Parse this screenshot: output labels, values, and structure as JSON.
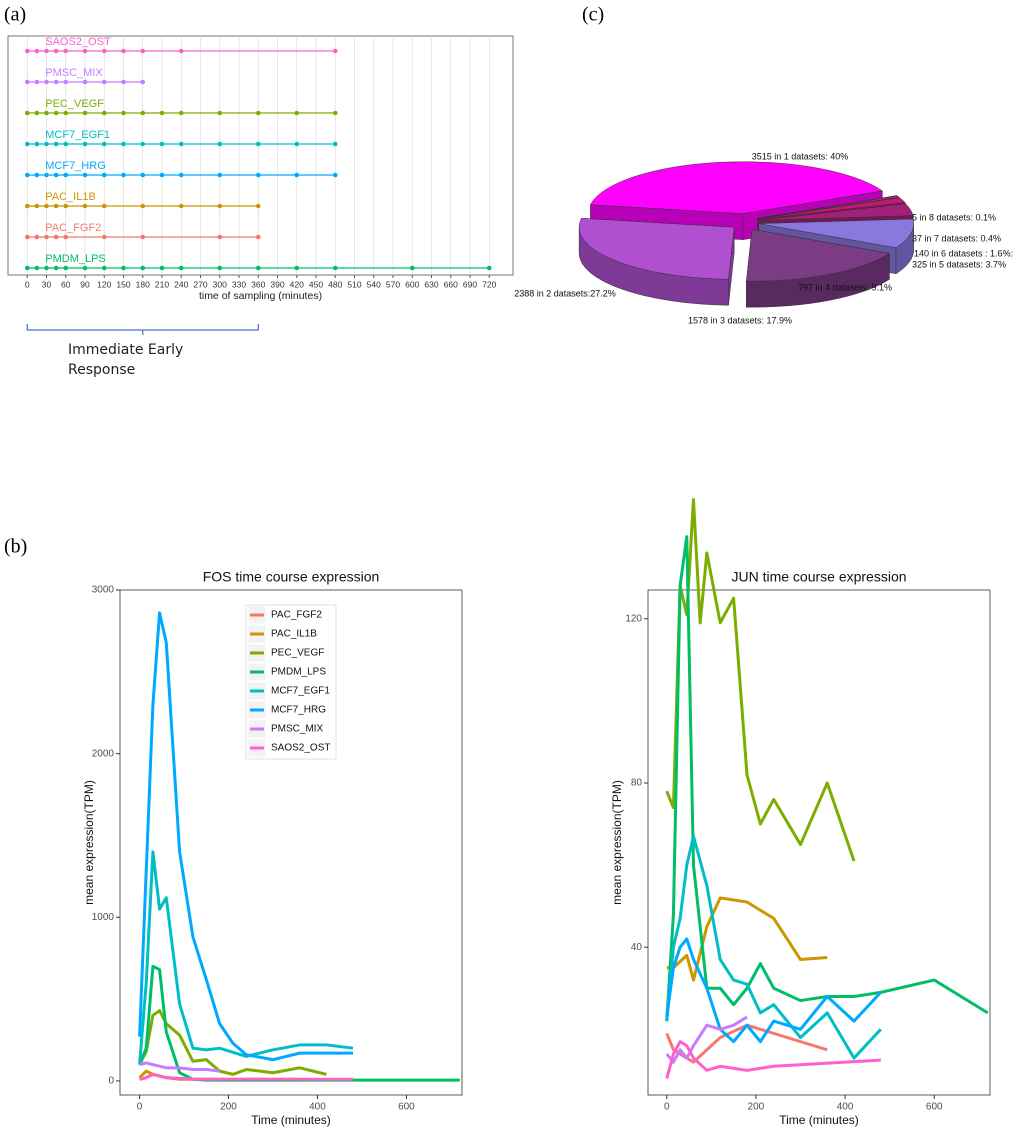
{
  "panel_labels": [
    "(a)",
    "(c)",
    "(b)"
  ],
  "chart_data": [
    {
      "type": "timeline",
      "xlabel": "time of sampling (minutes)",
      "xlim": [
        -30,
        757
      ],
      "xticks": [
        0,
        30,
        60,
        90,
        120,
        150,
        180,
        210,
        240,
        270,
        300,
        330,
        360,
        390,
        420,
        450,
        480,
        510,
        540,
        570,
        600,
        630,
        660,
        690,
        720
      ],
      "grid": true,
      "annotation": {
        "text": "Immediate Early Response",
        "x": [
          0,
          360
        ]
      },
      "series": [
        {
          "name": "SAOS2_OST",
          "color": "#ff61cc",
          "x": [
            0,
            15,
            30,
            45,
            60,
            90,
            120,
            150,
            180,
            240,
            480
          ]
        },
        {
          "name": "PMSC_MIX",
          "color": "#c77cff",
          "x": [
            0,
            15,
            30,
            45,
            60,
            90,
            120,
            150,
            180
          ]
        },
        {
          "name": "PEC_VEGF",
          "color": "#7cae00",
          "x": [
            0,
            15,
            30,
            45,
            60,
            90,
            120,
            150,
            180,
            210,
            240,
            300,
            360,
            420,
            480
          ]
        },
        {
          "name": "MCF7_EGF1",
          "color": "#00bfc4",
          "x": [
            0,
            15,
            30,
            45,
            60,
            90,
            120,
            150,
            180,
            210,
            240,
            300,
            360,
            420,
            480
          ]
        },
        {
          "name": "MCF7_HRG",
          "color": "#00a9ff",
          "x": [
            0,
            15,
            30,
            45,
            60,
            90,
            120,
            150,
            180,
            210,
            240,
            300,
            360,
            420,
            480
          ]
        },
        {
          "name": "PAC_IL1B",
          "color": "#cd9600",
          "x": [
            0,
            15,
            30,
            45,
            60,
            90,
            120,
            180,
            240,
            300,
            360
          ]
        },
        {
          "name": "PAC_FGF2",
          "color": "#f8766d",
          "x": [
            0,
            15,
            30,
            45,
            60,
            120,
            180,
            300,
            360
          ]
        },
        {
          "name": "PMDM_LPS",
          "color": "#00be67",
          "x": [
            0,
            15,
            30,
            45,
            60,
            90,
            120,
            150,
            180,
            210,
            240,
            300,
            360,
            420,
            480,
            600,
            720
          ]
        }
      ]
    },
    {
      "type": "pie",
      "labels": [
        "3515 in 1 datasets: 40%",
        "5 in 8 datasets: 0.1%",
        "37 in 7 datasets: 0.4%",
        "140 in 6 datasets : 1.6%:",
        "325 in 5 datasets: 3.7%",
        "797 in 4 datasets: 9.1%",
        "1578 in 3 datasets: 17.9%",
        "2388 in 2 datasets:27.2%"
      ],
      "values": [
        40,
        0.1,
        0.4,
        1.6,
        3.7,
        9.1,
        17.9,
        27.2
      ],
      "colors": [
        "#ff00ff",
        "#f0a8e0",
        "#d03090",
        "#c8157a",
        "#a0207a",
        "#8a78de",
        "#7b3b85",
        "#b04fd0"
      ]
    },
    {
      "type": "line",
      "title": "FOS time course expression",
      "xlabel": "Time (minutes)",
      "ylabel": "mean expression(TPM)",
      "xlim": [
        -44,
        725
      ],
      "ylim": [
        -86,
        3000
      ],
      "xticks": [
        0,
        200,
        400,
        600
      ],
      "yticks": [
        0,
        1000,
        2000,
        3000
      ],
      "legend": "top-center",
      "series": [
        {
          "name": "PAC_FGF2",
          "color": "#f8766d",
          "x": [
            0,
            15,
            30,
            45,
            60,
            120,
            180,
            300,
            360
          ],
          "values": [
            10,
            20,
            40,
            30,
            20,
            10,
            5,
            5,
            5
          ]
        },
        {
          "name": "PAC_IL1B",
          "color": "#cd9600",
          "x": [
            0,
            15,
            30,
            45,
            60,
            90,
            120,
            180,
            240,
            300,
            360
          ],
          "values": [
            20,
            60,
            40,
            30,
            20,
            10,
            10,
            10,
            10,
            10,
            10
          ]
        },
        {
          "name": "PEC_VEGF",
          "color": "#7cae00",
          "x": [
            0,
            15,
            30,
            45,
            60,
            90,
            120,
            150,
            180,
            210,
            240,
            300,
            360,
            420
          ],
          "values": [
            100,
            180,
            400,
            430,
            350,
            280,
            120,
            130,
            60,
            40,
            70,
            50,
            80,
            40
          ]
        },
        {
          "name": "PMDM_LPS",
          "color": "#00be67",
          "x": [
            0,
            15,
            30,
            45,
            60,
            90,
            120,
            150,
            180,
            210,
            240,
            300,
            360,
            420,
            480,
            600,
            720
          ],
          "values": [
            100,
            200,
            700,
            680,
            300,
            50,
            10,
            5,
            5,
            5,
            5,
            5,
            5,
            5,
            5,
            5,
            5
          ]
        },
        {
          "name": "MCF7_EGF1",
          "color": "#00bfc4",
          "x": [
            0,
            15,
            30,
            45,
            60,
            90,
            120,
            150,
            180,
            240,
            300,
            360,
            420,
            480
          ],
          "values": [
            100,
            600,
            1400,
            1050,
            1120,
            470,
            200,
            190,
            200,
            150,
            190,
            220,
            220,
            200
          ]
        },
        {
          "name": "MCF7_HRG",
          "color": "#00a9ff",
          "x": [
            0,
            30,
            45,
            60,
            90,
            120,
            150,
            180,
            210,
            240,
            300,
            360,
            420,
            480
          ],
          "values": [
            270,
            2300,
            2860,
            2680,
            1400,
            880,
            620,
            350,
            230,
            160,
            130,
            170,
            170,
            170
          ]
        },
        {
          "name": "PMSC_MIX",
          "color": "#c77cff",
          "x": [
            0,
            15,
            30,
            45,
            60,
            90,
            120,
            150,
            180
          ],
          "values": [
            100,
            110,
            100,
            90,
            80,
            80,
            70,
            70,
            60
          ]
        },
        {
          "name": "SAOS2_OST",
          "color": "#ff61cc",
          "x": [
            0,
            15,
            30,
            45,
            60,
            90,
            120,
            150,
            180,
            240,
            480
          ],
          "values": [
            10,
            20,
            40,
            30,
            20,
            15,
            10,
            10,
            10,
            10,
            10
          ]
        }
      ]
    },
    {
      "type": "line",
      "title": "JUN time course expression",
      "xlabel": "Time (minutes)",
      "ylabel": "mean expression(TPM)",
      "xlim": [
        -42,
        725
      ],
      "ylim": [
        4,
        127
      ],
      "xticks": [
        0,
        200,
        400,
        600
      ],
      "yticks": [
        40,
        80,
        120
      ],
      "series": [
        {
          "name": "PAC_FGF2",
          "color": "#f8766d",
          "x": [
            0,
            15,
            30,
            45,
            60,
            120,
            180,
            300,
            360
          ],
          "values": [
            19,
            15,
            14,
            13,
            12,
            18,
            21,
            17,
            15
          ]
        },
        {
          "name": "PAC_IL1B",
          "color": "#cd9600",
          "x": [
            0,
            15,
            45,
            60,
            90,
            120,
            180,
            240,
            300,
            360
          ],
          "values": [
            35,
            35,
            38,
            32,
            45,
            52,
            51,
            47,
            37,
            37.5
          ]
        },
        {
          "name": "PEC_VEGF",
          "color": "#7cae00",
          "x": [
            0,
            15,
            30,
            45,
            60,
            75,
            90,
            120,
            150,
            180,
            210,
            240,
            300,
            360,
            420
          ],
          "values": [
            78,
            74,
            128,
            121,
            149,
            119,
            136,
            119,
            125,
            82,
            70,
            76,
            65,
            80,
            61
          ]
        },
        {
          "name": "PMDM_LPS",
          "color": "#00be67",
          "x": [
            0,
            15,
            30,
            45,
            60,
            90,
            120,
            150,
            180,
            210,
            240,
            300,
            360,
            420,
            480,
            600,
            720
          ],
          "values": [
            22,
            48,
            128,
            140,
            60,
            30,
            30,
            26,
            30,
            36,
            30,
            27,
            28,
            28,
            29,
            32,
            24
          ]
        },
        {
          "name": "MCF7_EGF1",
          "color": "#00bfc4",
          "x": [
            0,
            15,
            30,
            45,
            60,
            90,
            120,
            150,
            180,
            210,
            240,
            300,
            360,
            420,
            480
          ],
          "values": [
            22,
            40,
            47,
            60,
            67,
            55,
            37,
            32,
            31,
            24,
            26,
            18,
            24,
            13,
            20
          ]
        },
        {
          "name": "MCF7_HRG",
          "color": "#00a9ff",
          "x": [
            0,
            15,
            30,
            45,
            60,
            90,
            120,
            150,
            180,
            210,
            240,
            300,
            360,
            420,
            480
          ],
          "values": [
            23,
            35,
            40,
            42,
            37,
            30,
            20,
            17,
            21,
            17,
            22,
            20,
            28,
            22,
            29
          ]
        },
        {
          "name": "PMSC_MIX",
          "color": "#c77cff",
          "x": [
            0,
            15,
            30,
            45,
            60,
            90,
            120,
            150,
            180
          ],
          "values": [
            14,
            12,
            15,
            13,
            16,
            21,
            20,
            21,
            23
          ]
        },
        {
          "name": "SAOS2_OST",
          "color": "#ff61cc",
          "x": [
            0,
            15,
            30,
            45,
            60,
            90,
            120,
            180,
            240,
            480
          ],
          "values": [
            8,
            14,
            17,
            16,
            13,
            10,
            11,
            10,
            11,
            12.5
          ]
        }
      ]
    }
  ]
}
